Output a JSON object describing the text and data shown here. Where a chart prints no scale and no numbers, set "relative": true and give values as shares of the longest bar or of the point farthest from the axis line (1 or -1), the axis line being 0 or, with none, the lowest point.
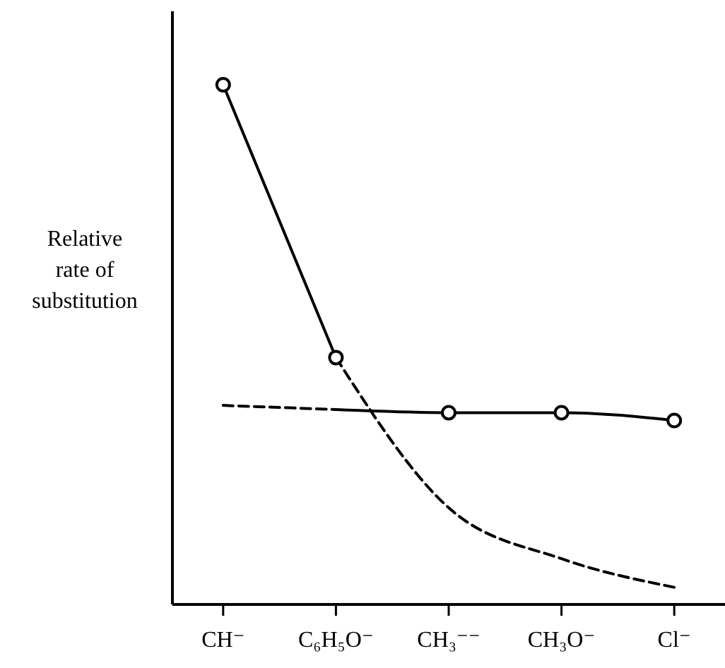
{
  "chart_data": {
    "type": "line",
    "relative": true,
    "ylabel": "Relative rate of substitution",
    "categories": [
      "CH⁻",
      "C₆H₅O⁻",
      "CH₃⁻⁻",
      "CH₃O⁻",
      "Cl⁻"
    ],
    "series": [
      {
        "type": "line",
        "color": "#000000",
        "line_style": "solid",
        "marker": "none",
        "values": [
          1,
          0.475,
          null,
          null,
          null
        ]
      },
      {
        "type": "line",
        "color": "#000000",
        "line_style": "dashed",
        "marker": "none",
        "values": [
          null,
          0.475,
          0.186,
          0.088,
          0.033
        ]
      },
      {
        "type": "line",
        "color": "#000000",
        "line_style": "dashed",
        "marker": "none",
        "values": [
          0.383,
          0.375,
          null,
          null,
          null
        ]
      },
      {
        "type": "line",
        "color": "#000000",
        "line_style": "solid",
        "marker": "none",
        "values": [
          null,
          0.375,
          0.369,
          0.369,
          0.354
        ]
      },
      {
        "type": "scatter",
        "color": "#000000",
        "marker": "circle",
        "values": [
          1,
          0.475,
          0.369,
          0.369,
          0.354
        ]
      }
    ]
  }
}
